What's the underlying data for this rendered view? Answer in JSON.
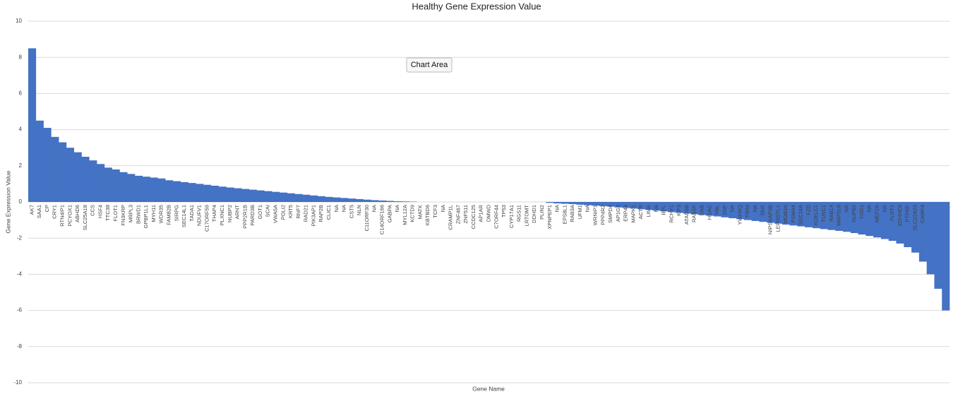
{
  "chart_data": {
    "type": "bar",
    "title": "Healthy Gene Expression Value",
    "tooltip": "Chart Area",
    "x_label": "Gene Name",
    "y_label": "Gene Expression Value",
    "color": "#4472c4",
    "grid": true,
    "ylim": [
      -10,
      10
    ],
    "yticks": [
      -10,
      -8,
      -6,
      -4,
      -2,
      0,
      2,
      4,
      6,
      8,
      10
    ],
    "categories": [
      "AK7",
      "SAA1",
      "CP",
      "CRY1",
      "RTN4IP1",
      "PCYOX1",
      "ABHD6",
      "SLC25A18",
      "CCS",
      "HSF4",
      "TTC38",
      "FLOT1",
      "FN3KRP",
      "MRPL3",
      "BRWD1",
      "GPBP1L1",
      "MYH11",
      "WDR35",
      "FAM82B",
      "SIRPG",
      "SEC14L1",
      "TADA1",
      "NDUFV1",
      "C17ORF59",
      "THAP4",
      "PLXNC1",
      "NUBP2",
      "ARNT",
      "PPP2R1B",
      "PARD3B",
      "GOT1",
      "SCAI",
      "VWA5A",
      "POLI2",
      "KRT5",
      "RNF7",
      "RAD21",
      "PIK3AP1",
      "RAP2B",
      "CLIC1",
      "NA",
      "NA",
      "CST5",
      "NLN",
      "C11ORF30",
      "NA",
      "C14ORF166",
      "GABPA",
      "NA",
      "MYL12A",
      "KCTD9",
      "MATK",
      "KBTBD6",
      "TCF3",
      "NA",
      "CRAMP1L",
      "ZNF467",
      "ZNF511",
      "CCDC125",
      "AP1AR",
      "DMWD",
      "C7ORF44",
      "TP53",
      "CYP17A1",
      "RGS11",
      "LRTOMT",
      "DDHD1",
      "PLIN2",
      "XPNPEP1",
      "NA",
      "EPS8L1",
      "RAB3A",
      "UFM1",
      "NA",
      "WRNIP1",
      "PPP4R2",
      "SMPD4",
      "AP1G2",
      "ERP44",
      "MAPK1",
      "ACTR",
      "LIMA",
      "NA",
      "RPL",
      "RCHY1",
      "KIF3",
      "ATAD3B",
      "RASSF",
      "DAB",
      "HDAC",
      "FBL",
      "ZNF",
      "NA",
      "YWHAQ",
      "TRIM",
      "NA",
      "SNX",
      "NIPSNAP3B",
      "LEPROTL1",
      "MOB3A",
      "PSMA4",
      "SEC24A",
      "FZD",
      "KDELC1",
      "TUSC1",
      "RAB14",
      "MRPS18",
      "NR",
      "NUP62",
      "YOD1",
      "NA",
      "MEF2A",
      "NA",
      "FLRT1",
      "ZDHHC6",
      "PTPRF",
      "SLC22A23",
      "CAMK4",
      null,
      null,
      null
    ],
    "values": [
      8.5,
      4.5,
      4.1,
      3.6,
      3.3,
      3.0,
      2.75,
      2.5,
      2.3,
      2.1,
      1.9,
      1.8,
      1.65,
      1.55,
      1.45,
      1.4,
      1.35,
      1.3,
      1.2,
      1.15,
      1.1,
      1.05,
      1.0,
      0.95,
      0.9,
      0.85,
      0.8,
      0.76,
      0.72,
      0.68,
      0.64,
      0.6,
      0.56,
      0.52,
      0.48,
      0.44,
      0.4,
      0.36,
      0.32,
      0.28,
      0.25,
      0.22,
      0.19,
      0.16,
      0.13,
      0.1,
      0.08,
      0.06,
      0.04,
      0.03,
      0.02,
      0,
      0,
      0,
      0,
      0,
      0,
      0,
      0,
      0,
      0,
      0,
      0,
      0,
      0,
      0,
      0,
      0,
      -0.05,
      -0.08,
      -0.1,
      -0.12,
      -0.15,
      -0.18,
      -0.2,
      -0.23,
      -0.26,
      -0.3,
      -0.33,
      -0.36,
      -0.4,
      -0.44,
      -0.48,
      -0.52,
      -0.56,
      -0.6,
      -0.64,
      -0.68,
      -0.72,
      -0.76,
      -0.8,
      -0.85,
      -0.9,
      -0.95,
      -1.0,
      -1.05,
      -1.1,
      -1.15,
      -1.2,
      -1.25,
      -1.3,
      -1.35,
      -1.4,
      -1.45,
      -1.5,
      -1.55,
      -1.6,
      -1.65,
      -1.72,
      -1.8,
      -1.88,
      -1.96,
      -2.05,
      -2.15,
      -2.3,
      -2.5,
      -2.8,
      -3.3,
      -4.0,
      -4.8,
      -6.0
    ]
  }
}
